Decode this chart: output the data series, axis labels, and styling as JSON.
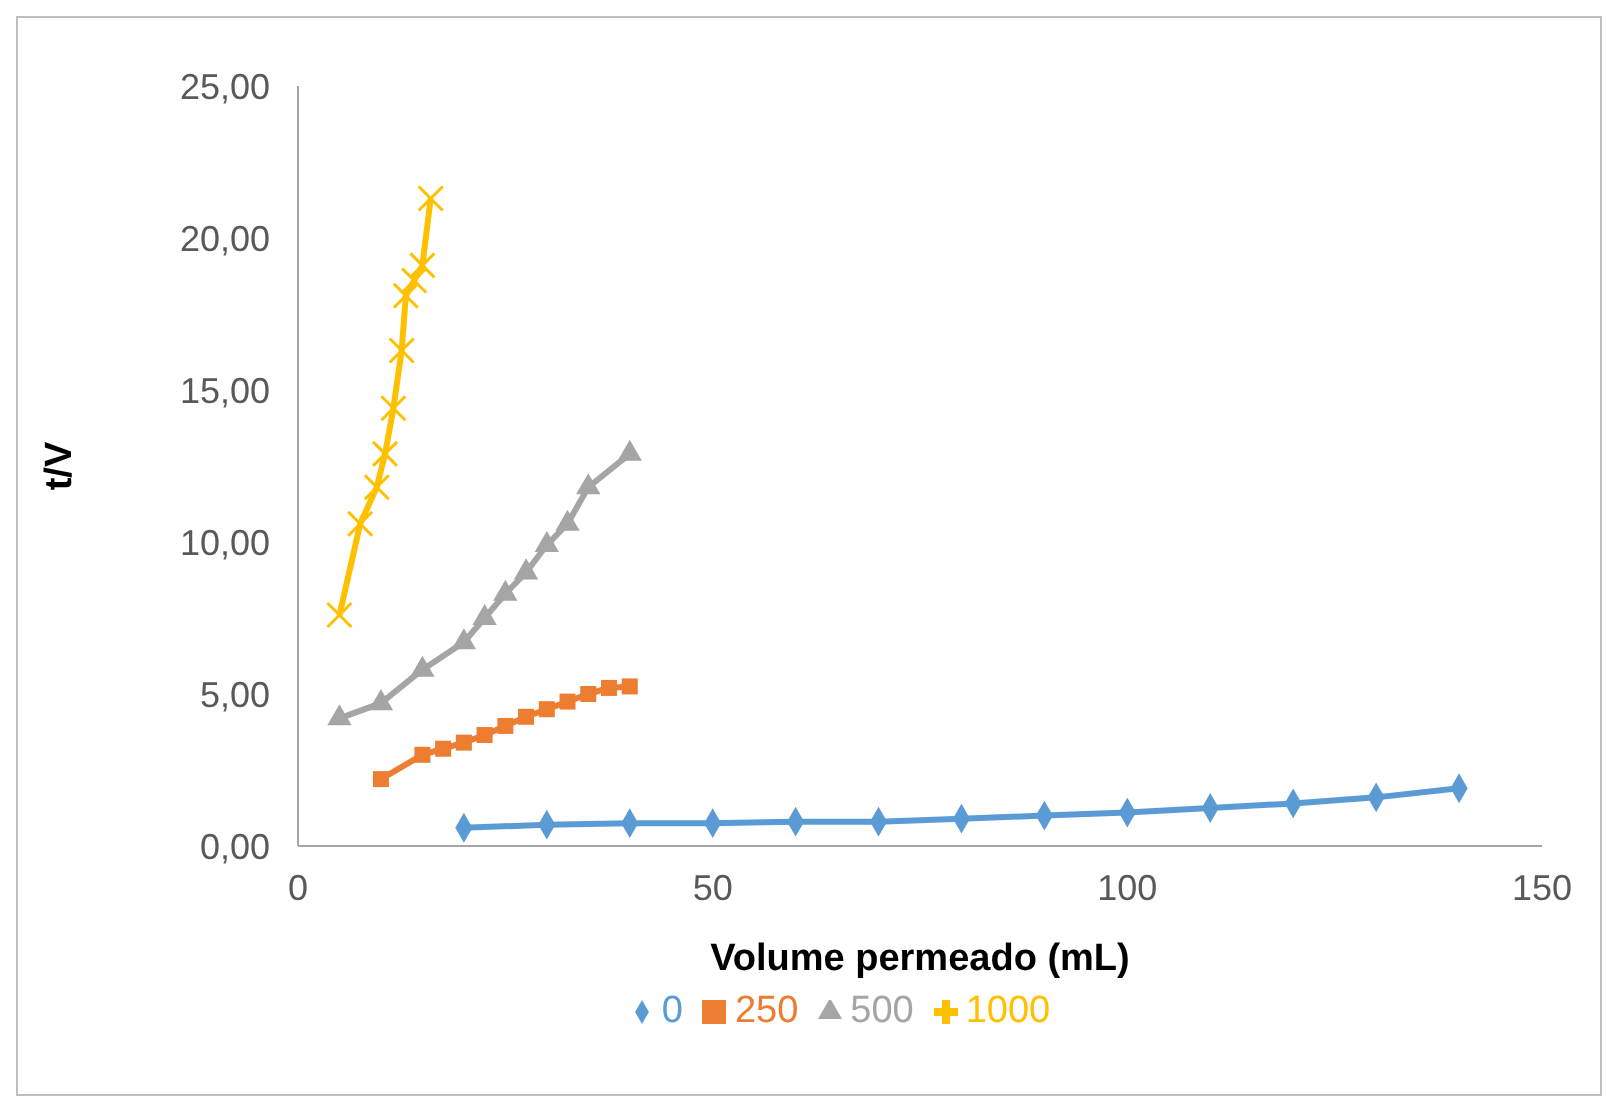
{
  "chart_data": {
    "type": "line",
    "xlabel": "Volume permeado (mL)",
    "ylabel": "t/V",
    "xlim": [
      0,
      150
    ],
    "xticks": [
      0,
      50,
      100,
      150
    ],
    "ylim": [
      0,
      25
    ],
    "yticks": [
      {
        "value": 0,
        "label": "0,00"
      },
      {
        "value": 5,
        "label": "5,00"
      },
      {
        "value": 10,
        "label": "10,00"
      },
      {
        "value": 15,
        "label": "15,00"
      },
      {
        "value": 20,
        "label": "20,00"
      },
      {
        "value": 25,
        "label": "25,00"
      }
    ],
    "grid": false,
    "legend": "bottom",
    "series": [
      {
        "name": "0",
        "color": "#5b9bd5",
        "marker": "diamond",
        "x": [
          20,
          30,
          40,
          50,
          60,
          70,
          80,
          90,
          100,
          110,
          120,
          130,
          140
        ],
        "values": [
          0.6,
          0.7,
          0.75,
          0.75,
          0.8,
          0.8,
          0.9,
          1.0,
          1.1,
          1.25,
          1.4,
          1.6,
          1.9
        ]
      },
      {
        "name": "250",
        "color": "#ed7d31",
        "marker": "square",
        "x": [
          10,
          15,
          17.5,
          20,
          22.5,
          25,
          27.5,
          30,
          32.5,
          35,
          37.5,
          40
        ],
        "values": [
          2.2,
          3.0,
          3.2,
          3.4,
          3.65,
          3.95,
          4.25,
          4.5,
          4.75,
          5.0,
          5.2,
          5.25
        ]
      },
      {
        "name": "500",
        "color": "#a5a5a5",
        "marker": "triangle",
        "x": [
          5,
          10,
          15,
          20,
          22.5,
          25,
          27.5,
          30,
          32.5,
          35,
          40
        ],
        "values": [
          4.2,
          4.7,
          5.8,
          6.7,
          7.5,
          8.3,
          9.0,
          9.9,
          10.6,
          11.8,
          12.9
        ]
      },
      {
        "name": "1000",
        "color": "#ffc000",
        "marker": "cross",
        "x": [
          5,
          7.5,
          9.5,
          10.5,
          11.5,
          12.5,
          13,
          14,
          15,
          16
        ],
        "values": [
          7.6,
          10.6,
          11.8,
          12.9,
          14.4,
          16.3,
          18.1,
          18.6,
          19.1,
          21.3
        ]
      }
    ]
  }
}
